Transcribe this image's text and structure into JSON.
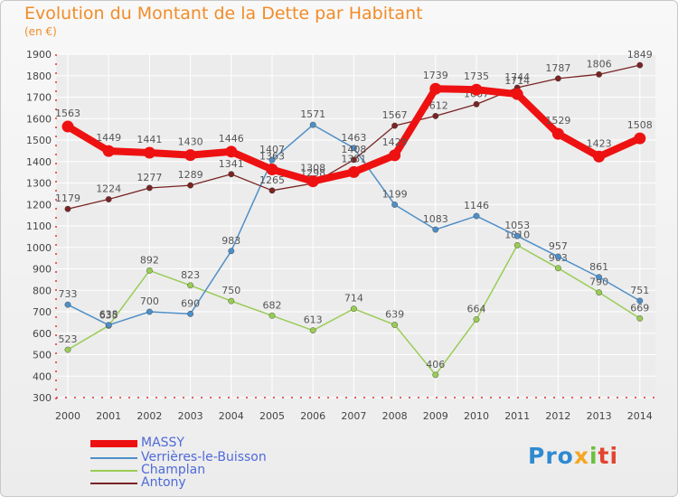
{
  "page": {
    "title": "Evolution du Montant de la Dette par Habitant",
    "unit": "(en €)",
    "brand": {
      "part1": "Pro",
      "part2": "x",
      "part3": "i",
      "part4": "ti"
    }
  },
  "chart_data": {
    "type": "line",
    "title": "Evolution du Montant de la Dette par Habitant",
    "ylabel": "(en €)",
    "xlabel": "",
    "x": [
      "2000",
      "2001",
      "2002",
      "2003",
      "2004",
      "2005",
      "2006",
      "2007",
      "2008",
      "2009",
      "2010",
      "2011",
      "2012",
      "2013",
      "2014"
    ],
    "ylim": [
      300,
      1900
    ],
    "yticks": [
      300,
      400,
      500,
      600,
      700,
      800,
      900,
      1000,
      1100,
      1200,
      1300,
      1400,
      1500,
      1600,
      1700,
      1800,
      1900
    ],
    "grid": true,
    "legend_position": "bottom-left",
    "series": [
      {
        "name": "MASSY",
        "color": "#ee1111",
        "values": [
          1563,
          1449,
          1441,
          1430,
          1446,
          1363,
          1308,
          1351,
          1429,
          1739,
          1735,
          1714,
          1529,
          1423,
          1508
        ]
      },
      {
        "name": "Verrières-le-Buisson",
        "color": "#4f8fc7",
        "values": [
          733,
          638,
          700,
          690,
          983,
          1407,
          1571,
          1463,
          1199,
          1083,
          1146,
          1053,
          957,
          861,
          751
        ]
      },
      {
        "name": "Champlan",
        "color": "#99cc55",
        "values": [
          523,
          635,
          892,
          823,
          750,
          682,
          613,
          714,
          639,
          406,
          664,
          1010,
          903,
          790,
          669
        ]
      },
      {
        "name": "Antony",
        "color": "#7a2424",
        "values": [
          1179,
          1224,
          1277,
          1289,
          1341,
          1265,
          1298,
          1408,
          1567,
          1612,
          1667,
          1744,
          1787,
          1806,
          1849
        ]
      }
    ]
  }
}
